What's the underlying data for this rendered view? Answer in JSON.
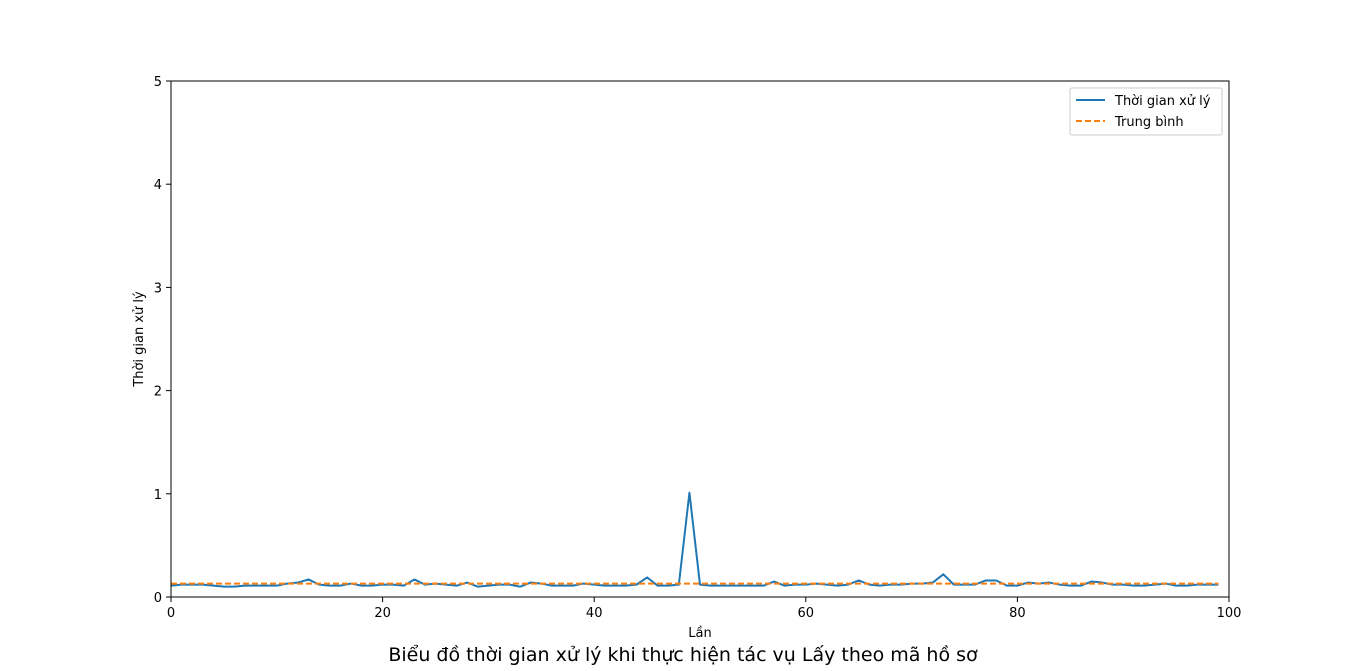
{
  "chart_data": {
    "type": "line",
    "caption": "Biểu đồ thời gian xử lý khi thực hiện tác vụ Lấy theo mã hồ sơ",
    "xlabel": "Lần",
    "ylabel": "Thời gian xử lý",
    "xlim": [
      0,
      100
    ],
    "ylim": [
      0,
      5
    ],
    "xticks": [
      "0",
      "20",
      "40",
      "60",
      "80",
      "100"
    ],
    "yticks": [
      "0",
      "1",
      "2",
      "3",
      "4",
      "5"
    ],
    "legend_position": "top-right",
    "grid": false,
    "series": [
      {
        "name": "Thời gian xử lý",
        "color": "#1f77b4",
        "style": "solid",
        "x": [
          0,
          1,
          2,
          3,
          4,
          5,
          6,
          7,
          8,
          9,
          10,
          11,
          12,
          13,
          14,
          15,
          16,
          17,
          18,
          19,
          20,
          21,
          22,
          23,
          24,
          25,
          26,
          27,
          28,
          29,
          30,
          31,
          32,
          33,
          34,
          35,
          36,
          37,
          38,
          39,
          40,
          41,
          42,
          43,
          44,
          45,
          46,
          47,
          48,
          49,
          50,
          51,
          52,
          53,
          54,
          55,
          56,
          57,
          58,
          59,
          60,
          61,
          62,
          63,
          64,
          65,
          66,
          67,
          68,
          69,
          70,
          71,
          72,
          73,
          74,
          75,
          76,
          77,
          78,
          79,
          80,
          81,
          82,
          83,
          84,
          85,
          86,
          87,
          88,
          89,
          90,
          91,
          92,
          93,
          94,
          95,
          96,
          97,
          98,
          99
        ],
        "y": [
          0.11,
          0.12,
          0.12,
          0.12,
          0.11,
          0.1,
          0.1,
          0.11,
          0.11,
          0.11,
          0.11,
          0.13,
          0.14,
          0.17,
          0.12,
          0.11,
          0.11,
          0.13,
          0.11,
          0.11,
          0.12,
          0.12,
          0.11,
          0.17,
          0.12,
          0.13,
          0.12,
          0.11,
          0.14,
          0.1,
          0.11,
          0.12,
          0.12,
          0.1,
          0.14,
          0.13,
          0.11,
          0.11,
          0.11,
          0.13,
          0.12,
          0.11,
          0.11,
          0.11,
          0.12,
          0.19,
          0.11,
          0.11,
          0.12,
          1.01,
          0.12,
          0.11,
          0.11,
          0.11,
          0.11,
          0.11,
          0.11,
          0.15,
          0.11,
          0.12,
          0.12,
          0.13,
          0.12,
          0.11,
          0.12,
          0.16,
          0.12,
          0.11,
          0.12,
          0.12,
          0.13,
          0.13,
          0.14,
          0.22,
          0.12,
          0.12,
          0.12,
          0.16,
          0.16,
          0.11,
          0.11,
          0.14,
          0.13,
          0.14,
          0.12,
          0.11,
          0.11,
          0.15,
          0.14,
          0.12,
          0.12,
          0.11,
          0.11,
          0.12,
          0.13,
          0.11,
          0.11,
          0.12,
          0.12,
          0.12
        ]
      },
      {
        "name": "Trung bình",
        "color": "#ff7f0e",
        "style": "dashed",
        "x": [
          0,
          99
        ],
        "y": [
          0.13,
          0.13
        ]
      }
    ]
  }
}
